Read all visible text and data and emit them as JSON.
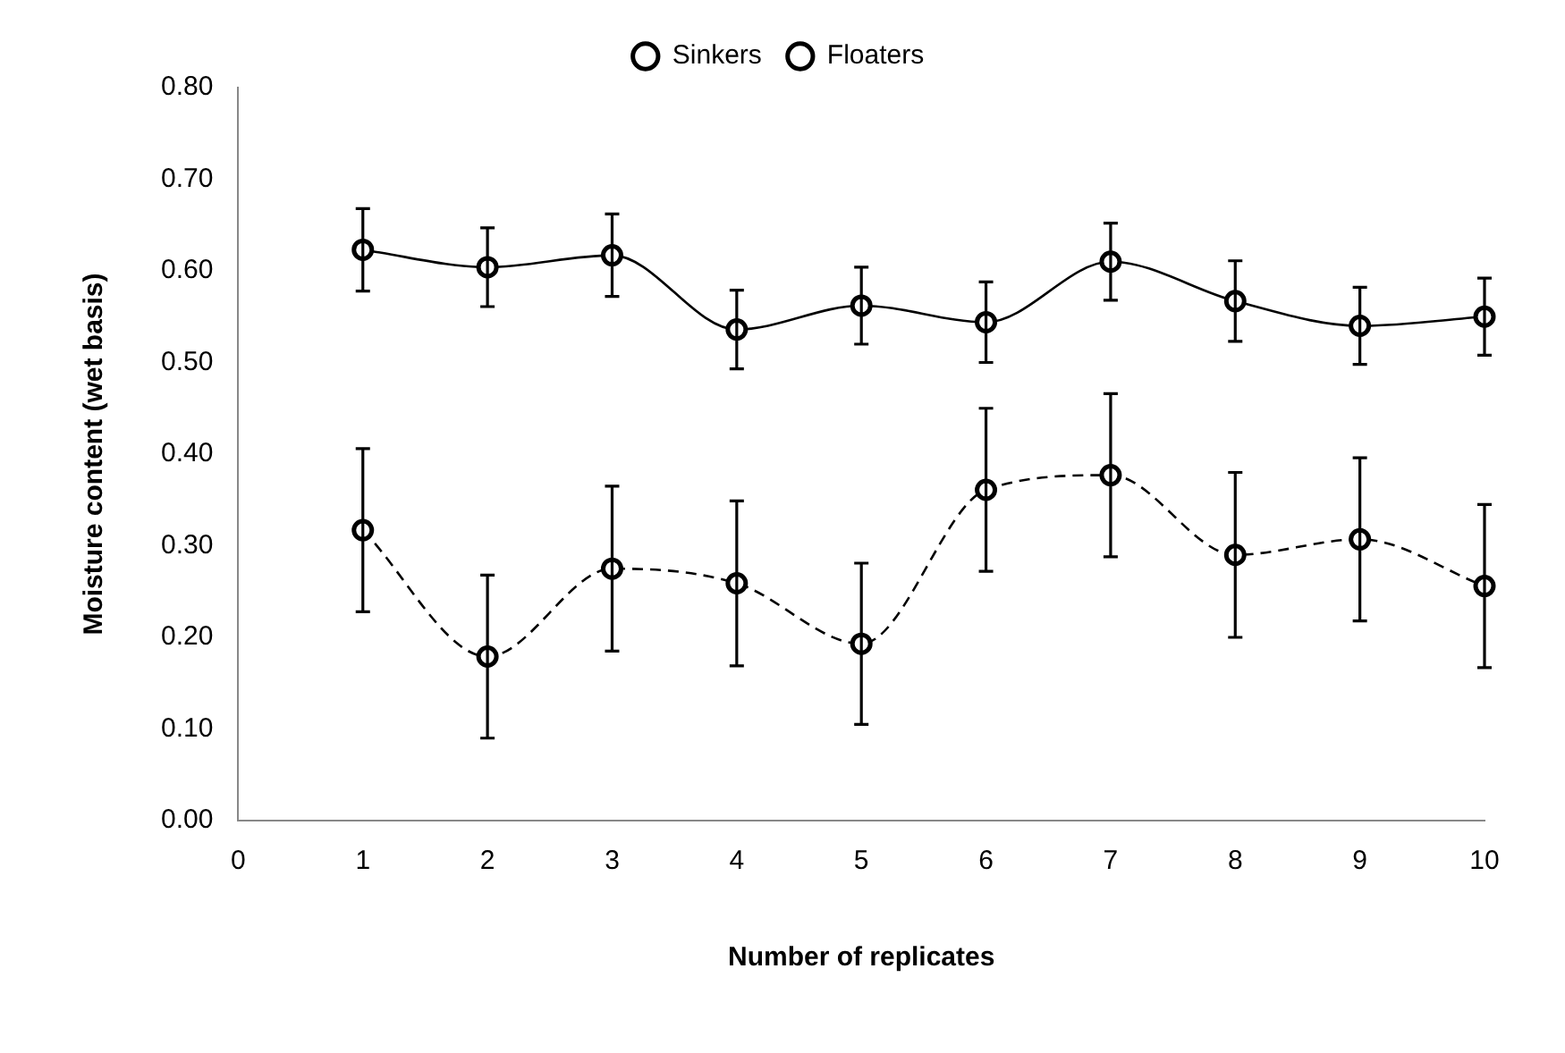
{
  "chart_data": {
    "type": "line",
    "xlabel": "Number of replicates",
    "ylabel": "Moisture content (wet basis)",
    "x": [
      1,
      2,
      3,
      4,
      5,
      6,
      7,
      8,
      9,
      10
    ],
    "series": [
      {
        "name": "Sinkers",
        "color": "#000000",
        "line_style": "solid",
        "values": [
          0.623,
          0.604,
          0.617,
          0.536,
          0.562,
          0.544,
          0.61,
          0.567,
          0.54,
          0.55
        ],
        "errors": [
          0.045,
          0.043,
          0.045,
          0.043,
          0.042,
          0.044,
          0.042,
          0.044,
          0.042,
          0.042
        ]
      },
      {
        "name": "Floaters",
        "color": "#000000",
        "line_style": "dashed",
        "values": [
          0.317,
          0.179,
          0.275,
          0.259,
          0.193,
          0.361,
          0.377,
          0.29,
          0.307,
          0.256
        ],
        "errors": [
          0.089,
          0.089,
          0.09,
          0.09,
          0.088,
          0.089,
          0.089,
          0.09,
          0.089,
          0.089
        ]
      }
    ],
    "xlim": [
      0,
      10
    ],
    "xticks": [
      0,
      1,
      2,
      3,
      4,
      5,
      6,
      7,
      8,
      9,
      10
    ],
    "ylim": [
      0,
      0.8
    ],
    "yticks": [
      {
        "value": 0,
        "label": "0.00"
      },
      {
        "value": 0.1,
        "label": "0.10"
      },
      {
        "value": 0.2,
        "label": "0.20"
      },
      {
        "value": 0.3,
        "label": "0.30"
      },
      {
        "value": 0.4,
        "label": "0.40"
      },
      {
        "value": 0.5,
        "label": "0.50"
      },
      {
        "value": 0.6,
        "label": "0.60"
      },
      {
        "value": 0.7,
        "label": "0.70"
      },
      {
        "value": 0.8,
        "label": "0.80"
      }
    ],
    "grid": false,
    "legend": "top",
    "marker": "circle"
  }
}
